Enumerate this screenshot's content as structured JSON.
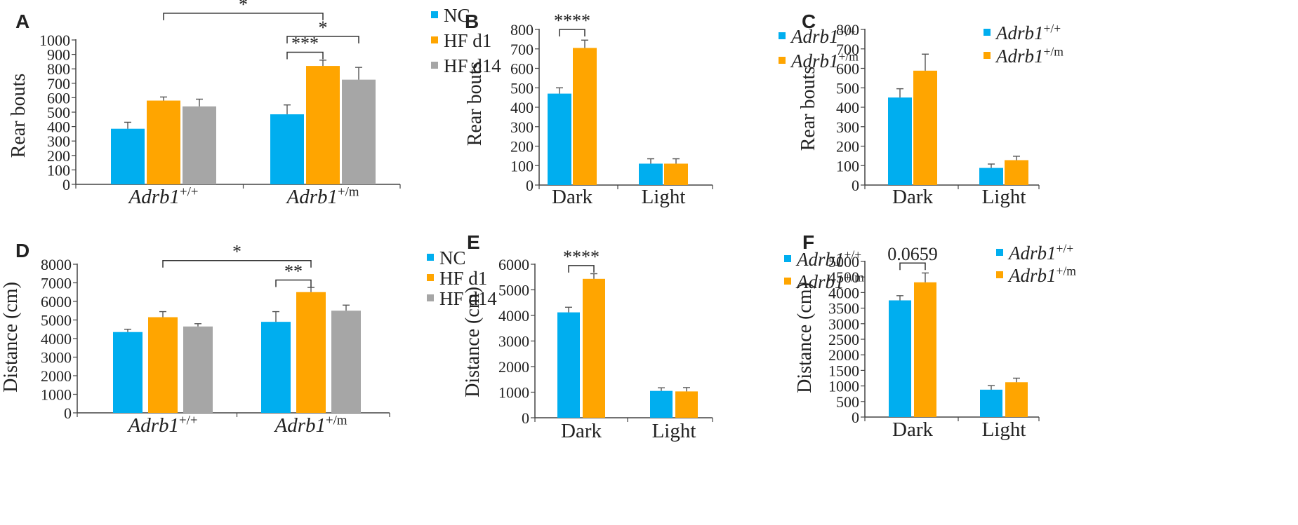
{
  "colors": {
    "NC": "#00AEEF",
    "HF d1": "#FFA500",
    "HF d14": "#A6A6A6",
    "wt": "#00AEEF",
    "mut": "#FFA500"
  },
  "chart_data": [
    {
      "id": "A",
      "type": "bar",
      "panel_label": "A",
      "ylabel": "Rear bouts",
      "ylim": [
        0,
        1000
      ],
      "yticks": [
        0,
        100,
        200,
        300,
        400,
        500,
        600,
        700,
        800,
        900,
        1000
      ],
      "categories": [
        {
          "base": "Adrb1",
          "sup": "+/+"
        },
        {
          "base": "Adrb1",
          "sup": "+/m"
        }
      ],
      "series": [
        {
          "name": "NC",
          "color": "#00AEEF",
          "values": [
            385,
            485
          ],
          "errors": [
            45,
            65
          ]
        },
        {
          "name": "HF d1",
          "color": "#FFA500",
          "values": [
            580,
            820
          ],
          "errors": [
            25,
            40
          ]
        },
        {
          "name": "HF d14",
          "color": "#A6A6A6",
          "values": [
            540,
            725
          ],
          "errors": [
            50,
            85
          ]
        }
      ],
      "legend": [
        {
          "label": "NC",
          "color": "#00AEEF"
        },
        {
          "label": "HF d1",
          "color": "#FFA500"
        },
        {
          "label": "HF d14",
          "color": "#A6A6A6"
        }
      ],
      "significance": [
        {
          "label": "*",
          "from": [
            0,
            1
          ],
          "to": [
            1,
            1
          ],
          "level": 1185
        },
        {
          "label": "***",
          "from": [
            1,
            0
          ],
          "to": [
            1,
            1
          ],
          "level": 915
        },
        {
          "label": "*",
          "from": [
            1,
            0
          ],
          "to": [
            1,
            2
          ],
          "level": 1025
        }
      ]
    },
    {
      "id": "B",
      "type": "bar",
      "panel_label": "B",
      "ylabel": "Rear bouts",
      "ylim": [
        0,
        800
      ],
      "yticks": [
        0,
        100,
        200,
        300,
        400,
        500,
        600,
        700,
        800
      ],
      "categories": [
        {
          "base": "Dark"
        },
        {
          "base": "Light"
        }
      ],
      "series": [
        {
          "name": "Adrb1 +/+",
          "color": "#00AEEF",
          "values": [
            470,
            110
          ],
          "errors": [
            30,
            25
          ]
        },
        {
          "name": "Adrb1 +/m",
          "color": "#FFA500",
          "values": [
            705,
            110
          ],
          "errors": [
            40,
            25
          ]
        }
      ],
      "legend": [
        {
          "base": "Adrb1",
          "sup": "+/+",
          "color": "#00AEEF"
        },
        {
          "base": "Adrb1",
          "sup": "+/m",
          "color": "#FFA500"
        }
      ],
      "significance": [
        {
          "label": "****",
          "from": [
            0,
            0
          ],
          "to": [
            0,
            1
          ],
          "level": 800
        }
      ]
    },
    {
      "id": "C",
      "type": "bar",
      "panel_label": "C",
      "ylabel": "Rear bouts",
      "ylim": [
        0,
        800
      ],
      "yticks": [
        0,
        100,
        200,
        300,
        400,
        500,
        600,
        700,
        800
      ],
      "categories": [
        {
          "base": "Dark"
        },
        {
          "base": "Light"
        }
      ],
      "series": [
        {
          "name": "Adrb1 +/+",
          "color": "#00AEEF",
          "values": [
            450,
            88
          ],
          "errors": [
            45,
            20
          ]
        },
        {
          "name": "Adrb1 +/m",
          "color": "#FFA500",
          "values": [
            588,
            128
          ],
          "errors": [
            85,
            20
          ]
        }
      ],
      "legend": [
        {
          "base": "Adrb1",
          "sup": "+/+",
          "color": "#00AEEF"
        },
        {
          "base": "Adrb1",
          "sup": "+/m",
          "color": "#FFA500"
        }
      ],
      "significance": []
    },
    {
      "id": "D",
      "type": "bar",
      "panel_label": "D",
      "ylabel": "Distance (cm)",
      "ylim": [
        0,
        8000
      ],
      "yticks": [
        0,
        1000,
        2000,
        3000,
        4000,
        5000,
        6000,
        7000,
        8000
      ],
      "categories": [
        {
          "base": "Adrb1",
          "sup": "+/+"
        },
        {
          "base": "Adrb1",
          "sup": "+/m"
        }
      ],
      "series": [
        {
          "name": "NC",
          "color": "#00AEEF",
          "values": [
            4350,
            4900
          ],
          "errors": [
            150,
            550
          ]
        },
        {
          "name": "HF d1",
          "color": "#FFA500",
          "values": [
            5150,
            6500
          ],
          "errors": [
            300,
            250
          ]
        },
        {
          "name": "HF d14",
          "color": "#A6A6A6",
          "values": [
            4650,
            5500
          ],
          "errors": [
            150,
            300
          ]
        }
      ],
      "legend": [
        {
          "label": "NC",
          "color": "#00AEEF"
        },
        {
          "label": "HF d1",
          "color": "#FFA500"
        },
        {
          "label": "HF d14",
          "color": "#A6A6A6"
        }
      ],
      "significance": [
        {
          "label": "*",
          "from": [
            0,
            1
          ],
          "to": [
            1,
            1
          ],
          "level": 8200
        },
        {
          "label": "**",
          "from": [
            1,
            0
          ],
          "to": [
            1,
            1
          ],
          "level": 7150
        }
      ]
    },
    {
      "id": "E",
      "type": "bar",
      "panel_label": "E",
      "ylabel": "Distance (cm)",
      "ylim": [
        0,
        6000
      ],
      "yticks": [
        0,
        1000,
        2000,
        3000,
        4000,
        5000,
        6000
      ],
      "categories": [
        {
          "base": "Dark"
        },
        {
          "base": "Light"
        }
      ],
      "series": [
        {
          "name": "Adrb1 +/+",
          "color": "#00AEEF",
          "values": [
            4120,
            1050
          ],
          "errors": [
            200,
            120
          ]
        },
        {
          "name": "Adrb1 +/m",
          "color": "#FFA500",
          "values": [
            5430,
            1030
          ],
          "errors": [
            200,
            150
          ]
        }
      ],
      "legend": [
        {
          "base": "Adrb1",
          "sup": "+/+",
          "color": "#00AEEF"
        },
        {
          "base": "Adrb1",
          "sup": "+/m",
          "color": "#FFA500"
        }
      ],
      "significance": [
        {
          "label": "****",
          "from": [
            0,
            0
          ],
          "to": [
            0,
            1
          ],
          "level": 5950
        }
      ]
    },
    {
      "id": "F",
      "type": "bar",
      "panel_label": "F",
      "ylabel": "Distance (cm)",
      "ylim": [
        0,
        5000
      ],
      "yticks": [
        0,
        500,
        1000,
        1500,
        2000,
        2500,
        3000,
        3500,
        4000,
        4500,
        5000
      ],
      "categories": [
        {
          "base": "Dark"
        },
        {
          "base": "Light"
        }
      ],
      "series": [
        {
          "name": "Adrb1 +/+",
          "color": "#00AEEF",
          "values": [
            3750,
            880
          ],
          "errors": [
            150,
            130
          ]
        },
        {
          "name": "Adrb1 +/m",
          "color": "#FFA500",
          "values": [
            4330,
            1120
          ],
          "errors": [
            300,
            130
          ]
        }
      ],
      "legend": [
        {
          "base": "Adrb1",
          "sup": "+/+",
          "color": "#00AEEF"
        },
        {
          "base": "Adrb1",
          "sup": "+/m",
          "color": "#FFA500"
        }
      ],
      "significance": [
        {
          "label": "0.0659",
          "from": [
            0,
            0
          ],
          "to": [
            0,
            1
          ],
          "level": 4950
        }
      ]
    }
  ]
}
